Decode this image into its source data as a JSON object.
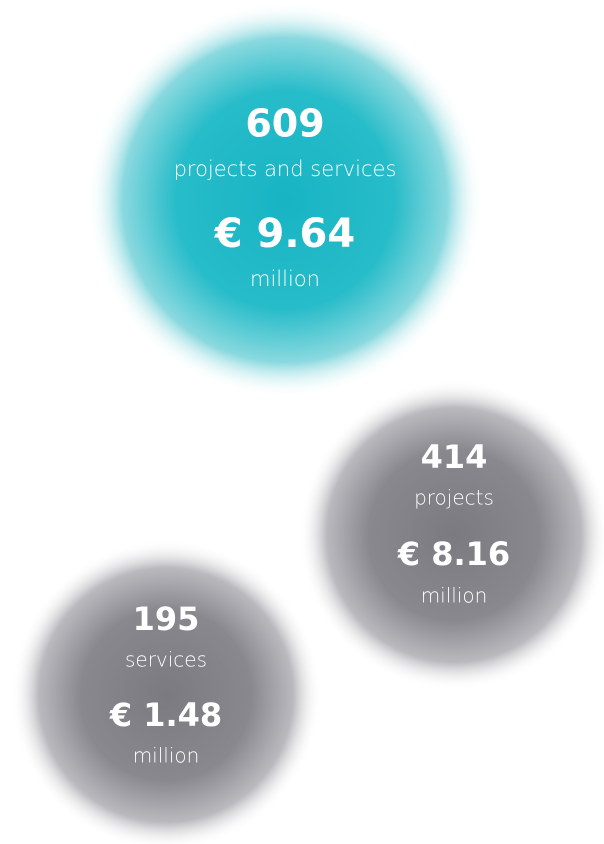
{
  "bubbles": [
    {
      "number": "609",
      "label": "projects and services",
      "amount": "€ 9.64",
      "unit": "million"
    },
    {
      "number": "414",
      "label": "projects",
      "amount": "€ 8.16",
      "unit": "million"
    },
    {
      "number": "195",
      "label": "services",
      "amount": "€ 1.48",
      "unit": "million"
    }
  ]
}
